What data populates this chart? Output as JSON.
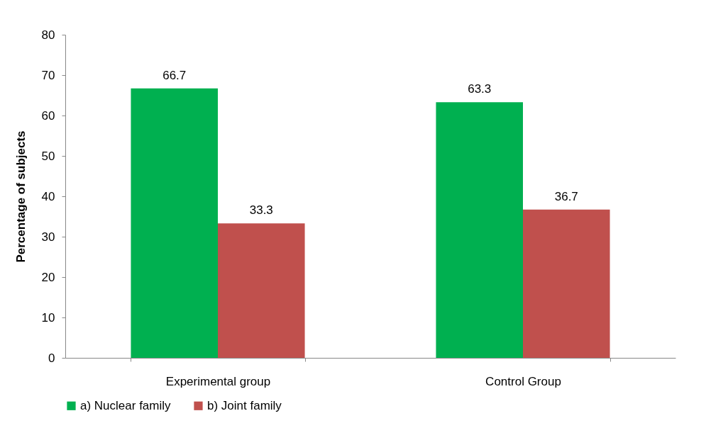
{
  "chart_data": {
    "type": "bar",
    "ylabel": "Percentage of subjects",
    "categories": [
      "Experimental group",
      "Control Group"
    ],
    "series": [
      {
        "name": "a) Nuclear family",
        "color": "#00b050",
        "values": [
          66.7,
          63.3
        ]
      },
      {
        "name": "b) Joint family",
        "color": "#c0504d",
        "values": [
          33.3,
          36.7
        ]
      }
    ],
    "ylim": [
      0,
      80
    ],
    "yticks": [
      0,
      10,
      20,
      30,
      40,
      50,
      60,
      70,
      80
    ],
    "grid": false,
    "legend": "bottom",
    "data_labels": true
  }
}
